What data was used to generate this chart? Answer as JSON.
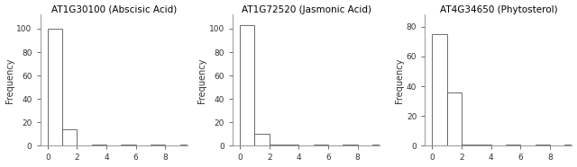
{
  "plots": [
    {
      "title": "AT1G30100 (Abscisic Acid)",
      "ylabel": "Frequency",
      "bin_heights": [
        100,
        14,
        0,
        1,
        0,
        1,
        0,
        1,
        0,
        1
      ],
      "xlim": [
        -0.5,
        9.5
      ],
      "ylim": [
        0,
        112
      ],
      "yticks": [
        0,
        20,
        40,
        60,
        80,
        100
      ],
      "xticks": [
        0,
        2,
        4,
        6,
        8
      ]
    },
    {
      "title": "AT1G72520 (Jasmonic Acid)",
      "ylabel": "Frequency",
      "bin_heights": [
        103,
        10,
        1,
        1,
        0,
        1,
        0,
        1,
        0,
        1
      ],
      "xlim": [
        -0.5,
        9.5
      ],
      "ylim": [
        0,
        112
      ],
      "yticks": [
        0,
        20,
        40,
        60,
        80,
        100
      ],
      "xticks": [
        0,
        2,
        4,
        6,
        8
      ]
    },
    {
      "title": "AT4G34650 (Phytosterol)",
      "ylabel": "Frequency",
      "bin_heights": [
        75,
        36,
        1,
        1,
        0,
        1,
        0,
        1,
        0,
        1
      ],
      "xlim": [
        -0.5,
        9.5
      ],
      "ylim": [
        0,
        88
      ],
      "yticks": [
        0,
        20,
        40,
        60,
        80
      ],
      "xticks": [
        0,
        2,
        4,
        6,
        8
      ]
    }
  ],
  "bg_color": "white",
  "bar_color": "white",
  "bar_edge_color": "#555555",
  "title_fontsize": 7.5,
  "label_fontsize": 7,
  "tick_fontsize": 6.5
}
